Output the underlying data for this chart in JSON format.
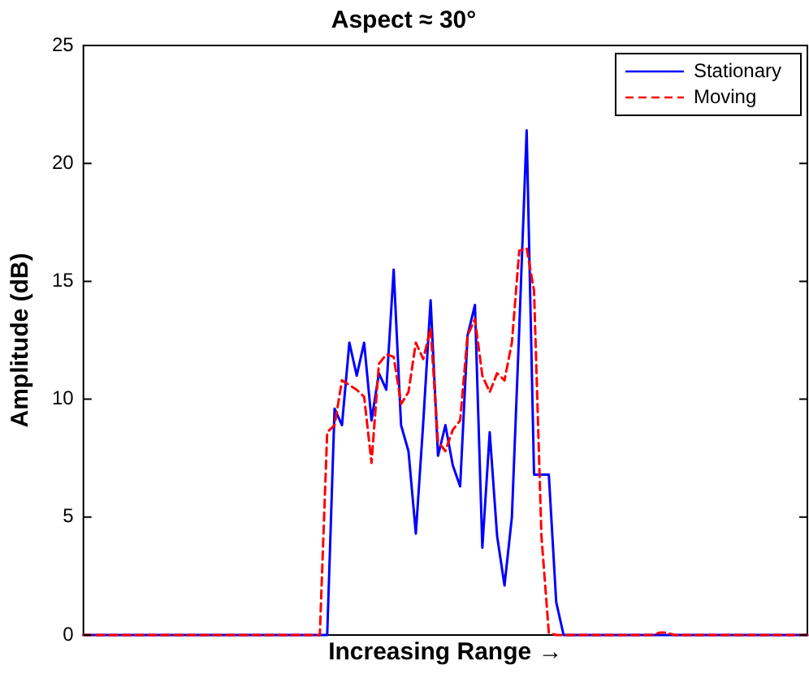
{
  "chart_data": {
    "type": "line",
    "title": "Aspect ≈ 30°",
    "xlabel": "Increasing Range →",
    "ylabel": "Amplitude (dB)",
    "categories": [
      null,
      null,
      null,
      null,
      null,
      null,
      null,
      null,
      null,
      null,
      null,
      null,
      null,
      null,
      null,
      null,
      null,
      null,
      null,
      null,
      null,
      null,
      null,
      null,
      null,
      null,
      null,
      null,
      null,
      null,
      null,
      null,
      null,
      null,
      null,
      null,
      null,
      null,
      null,
      null,
      null,
      null,
      null,
      null,
      null,
      null,
      null,
      null,
      null,
      null,
      null,
      null,
      null,
      null,
      null,
      null,
      null,
      null,
      null,
      null,
      null,
      null,
      null,
      null,
      null,
      null,
      null,
      null,
      null,
      null,
      null,
      null,
      null,
      null,
      null,
      null,
      null,
      null,
      null,
      null,
      null,
      null,
      null,
      null,
      null,
      null,
      null,
      null,
      null,
      null,
      null,
      null,
      null,
      null,
      null,
      null,
      null,
      null,
      null
    ],
    "series": [
      {
        "name": "Stationary",
        "color": "#0000ff",
        "line_style": "solid",
        "values": [
          0,
          0,
          0,
          0,
          0,
          0,
          0,
          0,
          0,
          0,
          0,
          0,
          0,
          0,
          0,
          0,
          0,
          0,
          0,
          0,
          0,
          0,
          0,
          0,
          0,
          0,
          0,
          0,
          0,
          0,
          0,
          0,
          0,
          0,
          9.6,
          8.9,
          12.4,
          11.0,
          12.4,
          9.1,
          11.1,
          10.4,
          15.5,
          8.9,
          7.8,
          4.3,
          9.0,
          14.2,
          7.6,
          8.9,
          7.2,
          6.3,
          12.7,
          14.0,
          3.7,
          8.6,
          4.2,
          2.1,
          5.0,
          13.0,
          21.4,
          6.8,
          6.8,
          6.8,
          1.4,
          0,
          0,
          0,
          0,
          0,
          0,
          0,
          0,
          0,
          0,
          0,
          0,
          0,
          0,
          0,
          0,
          0,
          0,
          0,
          0,
          0,
          0,
          0,
          0,
          0,
          0,
          0,
          0,
          0,
          0,
          0,
          0,
          0,
          0
        ]
      },
      {
        "name": "Moving",
        "color": "#ff0000",
        "line_style": "dashed",
        "values": [
          0,
          0,
          0,
          0,
          0,
          0,
          0,
          0,
          0,
          0,
          0,
          0,
          0,
          0,
          0,
          0,
          0,
          0,
          0,
          0,
          0,
          0,
          0,
          0,
          0,
          0,
          0,
          0,
          0,
          0,
          0,
          0,
          0,
          8.6,
          8.9,
          10.8,
          10.6,
          10.4,
          10.1,
          7.3,
          11.5,
          11.9,
          11.8,
          9.8,
          10.3,
          12.4,
          11.7,
          13.0,
          8.2,
          7.8,
          8.7,
          9.1,
          12.7,
          13.4,
          11.0,
          10.3,
          11.1,
          10.8,
          12.4,
          16.3,
          16.4,
          14.6,
          4.2,
          0.1,
          0,
          0,
          0,
          0,
          0,
          0,
          0,
          0,
          0,
          0,
          0,
          0,
          0,
          0,
          0.1,
          0.1,
          0,
          0,
          0,
          0,
          0,
          0,
          0,
          0,
          0,
          0,
          0,
          0,
          0,
          0,
          0,
          0,
          0,
          0,
          0
        ]
      }
    ],
    "ylim": [
      0,
      25
    ],
    "yticks": [
      0,
      5,
      10,
      15,
      20,
      25
    ],
    "grid": false,
    "legend": "top right",
    "marker": "none",
    "tick_labels": "y"
  }
}
